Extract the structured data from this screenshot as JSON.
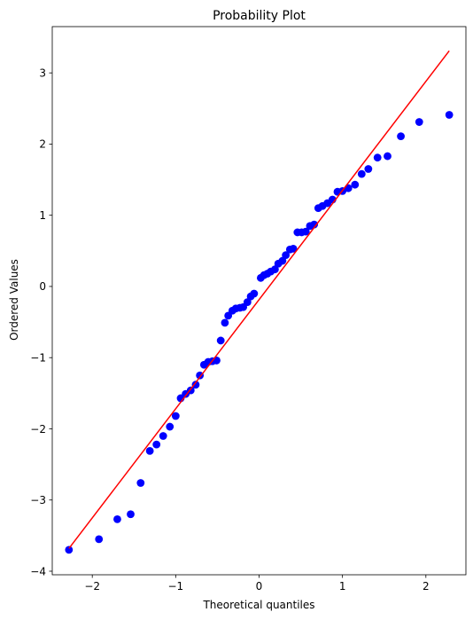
{
  "chart_data": {
    "type": "scatter",
    "title": "Probability Plot",
    "xlabel": "Theoretical quantiles",
    "ylabel": "Ordered Values",
    "xlim": [
      -2.48,
      2.48
    ],
    "ylim": [
      -4.05,
      3.65
    ],
    "xticks": [
      -2,
      -1,
      0,
      1,
      2
    ],
    "yticks": [
      -4,
      -3,
      -2,
      -1,
      0,
      1,
      2,
      3
    ],
    "xtick_labels": [
      "−2",
      "−1",
      "0",
      "1",
      "2"
    ],
    "ytick_labels": [
      "−4",
      "−3",
      "−2",
      "−1",
      "0",
      "1",
      "2",
      "3"
    ],
    "grid": false,
    "point_color": "#0000ff",
    "line_color": "#ff0000",
    "points": [
      {
        "x": -2.28,
        "y": -3.7
      },
      {
        "x": -1.92,
        "y": -3.55
      },
      {
        "x": -1.7,
        "y": -3.27
      },
      {
        "x": -1.54,
        "y": -3.2
      },
      {
        "x": -1.42,
        "y": -2.76
      },
      {
        "x": -1.31,
        "y": -2.31
      },
      {
        "x": -1.23,
        "y": -2.22
      },
      {
        "x": -1.15,
        "y": -2.1
      },
      {
        "x": -1.07,
        "y": -1.97
      },
      {
        "x": -1.0,
        "y": -1.82
      },
      {
        "x": -0.94,
        "y": -1.57
      },
      {
        "x": -0.88,
        "y": -1.51
      },
      {
        "x": -0.82,
        "y": -1.46
      },
      {
        "x": -0.76,
        "y": -1.38
      },
      {
        "x": -0.71,
        "y": -1.25
      },
      {
        "x": -0.66,
        "y": -1.1
      },
      {
        "x": -0.61,
        "y": -1.06
      },
      {
        "x": -0.56,
        "y": -1.05
      },
      {
        "x": -0.51,
        "y": -1.04
      },
      {
        "x": -0.46,
        "y": -0.76
      },
      {
        "x": -0.41,
        "y": -0.51
      },
      {
        "x": -0.37,
        "y": -0.41
      },
      {
        "x": -0.32,
        "y": -0.34
      },
      {
        "x": -0.28,
        "y": -0.31
      },
      {
        "x": -0.23,
        "y": -0.3
      },
      {
        "x": -0.19,
        "y": -0.29
      },
      {
        "x": -0.14,
        "y": -0.22
      },
      {
        "x": -0.1,
        "y": -0.14
      },
      {
        "x": -0.06,
        "y": -0.1
      },
      {
        "x": 0.02,
        "y": 0.12
      },
      {
        "x": 0.06,
        "y": 0.16
      },
      {
        "x": 0.1,
        "y": 0.18
      },
      {
        "x": 0.14,
        "y": 0.21
      },
      {
        "x": 0.19,
        "y": 0.24
      },
      {
        "x": 0.23,
        "y": 0.32
      },
      {
        "x": 0.28,
        "y": 0.36
      },
      {
        "x": 0.32,
        "y": 0.44
      },
      {
        "x": 0.37,
        "y": 0.52
      },
      {
        "x": 0.41,
        "y": 0.53
      },
      {
        "x": 0.46,
        "y": 0.76
      },
      {
        "x": 0.51,
        "y": 0.76
      },
      {
        "x": 0.56,
        "y": 0.77
      },
      {
        "x": 0.61,
        "y": 0.85
      },
      {
        "x": 0.66,
        "y": 0.87
      },
      {
        "x": 0.71,
        "y": 1.1
      },
      {
        "x": 0.76,
        "y": 1.13
      },
      {
        "x": 0.82,
        "y": 1.17
      },
      {
        "x": 0.88,
        "y": 1.22
      },
      {
        "x": 0.94,
        "y": 1.33
      },
      {
        "x": 1.0,
        "y": 1.34
      },
      {
        "x": 1.07,
        "y": 1.38
      },
      {
        "x": 1.15,
        "y": 1.43
      },
      {
        "x": 1.23,
        "y": 1.58
      },
      {
        "x": 1.31,
        "y": 1.65
      },
      {
        "x": 1.42,
        "y": 1.81
      },
      {
        "x": 1.54,
        "y": 1.83
      },
      {
        "x": 1.7,
        "y": 2.11
      },
      {
        "x": 1.92,
        "y": 2.31
      },
      {
        "x": 2.28,
        "y": 2.41
      }
    ],
    "fit_line": {
      "x": [
        -2.28,
        2.28
      ],
      "y": [
        -3.68,
        3.31
      ]
    }
  }
}
